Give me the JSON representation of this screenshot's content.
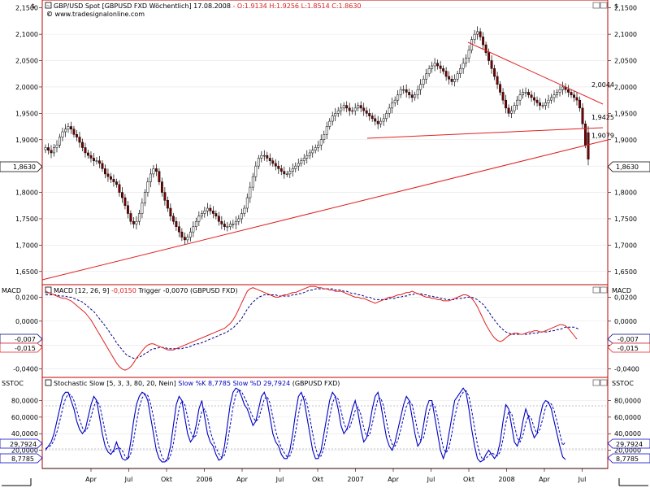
{
  "main_panel": {
    "header": {
      "title": "GBP/USD Spot [GBPUSD FXD  Wöchentlich] 17.08.2008",
      "ohlc": "- O:1.9134 H:1.9256 L:1.8514 C:1.8630",
      "source": "© www.tradesignalonline.com"
    },
    "axis_symbol": "$",
    "price_badge": "1,8630",
    "level_labels": [
      {
        "text": "2,0044",
        "value": 2.0044
      },
      {
        "text": "1,9425",
        "value": 1.9425
      },
      {
        "text": "1,9079",
        "value": 1.9079
      }
    ]
  },
  "macd_panel": {
    "name": "MACD",
    "header": "MACD [12, 26, 9]",
    "value_text": "-0,0150",
    "trigger_text": "Trigger -0,0070",
    "source_text": "(GBPUSD FXD)",
    "badges": [
      "-0,007",
      "-0,015"
    ]
  },
  "stoch_panel": {
    "name": "SSTOC",
    "header": "Stochastic Slow [5, 3, 3, 80, 20, Nein]",
    "k_text": "Slow %K 8,7785",
    "d_text": "Slow %D 29,7924",
    "source_text": "(GBPUSD FXD)",
    "badges": [
      "29,7924",
      "8,7785"
    ]
  },
  "x_labels": [
    "Apr",
    "Jul",
    "Okt",
    "2006",
    "Apr",
    "Jul",
    "Okt",
    "2007",
    "Apr",
    "Jul",
    "Okt",
    "2008",
    "Apr",
    "Jul"
  ],
  "colors": {
    "up_candle": "#ffffff",
    "down_candle": "#800000",
    "trend_line": "#e02020",
    "macd_line": "#e02020",
    "trigger_line": "#000080",
    "stoch_k": "#0000c0",
    "stoch_d": "#0000c0"
  },
  "chart_data": [
    {
      "type": "candlestick",
      "title": "GBP/USD Spot [GBPUSD FXD  Wöchentlich] 17.08.2008",
      "ylim": [
        1.625,
        2.165
      ],
      "y_ticks": [
        "2,1500",
        "2,1000",
        "2,0500",
        "2,0000",
        "1,9500",
        "1,9000",
        "1,8500",
        "1,8000",
        "1,7500",
        "1,7000",
        "1,6500"
      ],
      "last_bar": {
        "open": 1.9134,
        "high": 1.9256,
        "low": 1.8514,
        "close": 1.863
      },
      "closes": [
        1.885,
        1.88,
        1.875,
        1.885,
        1.89,
        1.905,
        1.915,
        1.92,
        1.925,
        1.92,
        1.91,
        1.905,
        1.895,
        1.885,
        1.875,
        1.87,
        1.865,
        1.86,
        1.86,
        1.855,
        1.845,
        1.835,
        1.83,
        1.825,
        1.82,
        1.815,
        1.8,
        1.79,
        1.775,
        1.76,
        1.745,
        1.74,
        1.745,
        1.76,
        1.78,
        1.8,
        1.82,
        1.835,
        1.845,
        1.84,
        1.82,
        1.8,
        1.785,
        1.77,
        1.755,
        1.745,
        1.735,
        1.725,
        1.715,
        1.71,
        1.715,
        1.725,
        1.735,
        1.745,
        1.755,
        1.76,
        1.765,
        1.77,
        1.765,
        1.76,
        1.755,
        1.745,
        1.74,
        1.735,
        1.735,
        1.74,
        1.74,
        1.745,
        1.75,
        1.76,
        1.77,
        1.79,
        1.81,
        1.83,
        1.85,
        1.865,
        1.87,
        1.87,
        1.865,
        1.86,
        1.855,
        1.85,
        1.845,
        1.84,
        1.835,
        1.835,
        1.84,
        1.845,
        1.85,
        1.855,
        1.86,
        1.865,
        1.87,
        1.875,
        1.88,
        1.885,
        1.89,
        1.9,
        1.91,
        1.925,
        1.935,
        1.945,
        1.95,
        1.955,
        1.96,
        1.965,
        1.96,
        1.955,
        1.955,
        1.96,
        1.965,
        1.96,
        1.955,
        1.95,
        1.945,
        1.94,
        1.935,
        1.93,
        1.935,
        1.94,
        1.95,
        1.96,
        1.97,
        1.975,
        1.985,
        1.995,
        1.995,
        1.99,
        1.985,
        1.98,
        1.985,
        1.995,
        2.005,
        2.015,
        2.025,
        2.035,
        2.04,
        2.045,
        2.04,
        2.035,
        2.03,
        2.02,
        2.015,
        2.01,
        2.015,
        2.025,
        2.035,
        2.045,
        2.055,
        2.07,
        2.09,
        2.1,
        2.105,
        2.095,
        2.08,
        2.065,
        2.05,
        2.035,
        2.02,
        2.005,
        1.99,
        1.975,
        1.96,
        1.95,
        1.955,
        1.965,
        1.975,
        1.985,
        1.99,
        1.99,
        1.985,
        1.98,
        1.975,
        1.97,
        1.965,
        1.965,
        1.97,
        1.975,
        1.98,
        1.985,
        1.99,
        1.995,
        2.0,
        1.995,
        1.99,
        1.985,
        1.98,
        1.975,
        1.96,
        1.93,
        1.89,
        1.863
      ]
    },
    {
      "type": "line",
      "name": "MACD",
      "ylim": [
        -0.047,
        0.0305
      ],
      "y_ticks": [
        "0,0200",
        "0,0000",
        "-0,0200",
        "-0,0400"
      ],
      "series": [
        {
          "name": "MACD [12, 26, 9]",
          "values": [
            0.025,
            0.024,
            0.023,
            0.022,
            0.021,
            0.02,
            0.019,
            0.019,
            0.018,
            0.017,
            0.015,
            0.013,
            0.011,
            0.009,
            0.007,
            0.004,
            0.001,
            -0.003,
            -0.007,
            -0.011,
            -0.015,
            -0.019,
            -0.023,
            -0.027,
            -0.031,
            -0.035,
            -0.038,
            -0.04,
            -0.041,
            -0.04,
            -0.038,
            -0.035,
            -0.031,
            -0.028,
            -0.025,
            -0.022,
            -0.02,
            -0.019,
            -0.019,
            -0.02,
            -0.021,
            -0.022,
            -0.023,
            -0.024,
            -0.024,
            -0.024,
            -0.023,
            -0.022,
            -0.021,
            -0.02,
            -0.019,
            -0.018,
            -0.017,
            -0.016,
            -0.015,
            -0.014,
            -0.013,
            -0.012,
            -0.011,
            -0.01,
            -0.009,
            -0.008,
            -0.007,
            -0.006,
            -0.004,
            -0.002,
            0.001,
            0.005,
            0.01,
            0.015,
            0.02,
            0.025,
            0.027,
            0.028,
            0.027,
            0.026,
            0.025,
            0.024,
            0.023,
            0.022,
            0.021,
            0.02,
            0.02,
            0.021,
            0.022,
            0.022,
            0.023,
            0.024,
            0.024,
            0.025,
            0.026,
            0.027,
            0.028,
            0.029,
            0.029,
            0.029,
            0.028,
            0.028,
            0.027,
            0.027,
            0.026,
            0.026,
            0.025,
            0.025,
            0.025,
            0.024,
            0.023,
            0.022,
            0.021,
            0.02,
            0.02,
            0.019,
            0.019,
            0.018,
            0.017,
            0.016,
            0.015,
            0.016,
            0.017,
            0.018,
            0.019,
            0.02,
            0.02,
            0.021,
            0.022,
            0.022,
            0.023,
            0.024,
            0.024,
            0.025,
            0.024,
            0.023,
            0.022,
            0.021,
            0.02,
            0.02,
            0.019,
            0.019,
            0.018,
            0.018,
            0.017,
            0.017,
            0.017,
            0.018,
            0.019,
            0.02,
            0.021,
            0.022,
            0.022,
            0.021,
            0.019,
            0.016,
            0.012,
            0.007,
            0.002,
            -0.003,
            -0.007,
            -0.011,
            -0.014,
            -0.016,
            -0.017,
            -0.016,
            -0.014,
            -0.012,
            -0.011,
            -0.01,
            -0.01,
            -0.011,
            -0.011,
            -0.01,
            -0.009,
            -0.009,
            -0.008,
            -0.008,
            -0.009,
            -0.009,
            -0.008,
            -0.007,
            -0.006,
            -0.005,
            -0.004,
            -0.003,
            -0.003,
            -0.004,
            -0.006,
            -0.009,
            -0.012,
            -0.015
          ]
        },
        {
          "name": "Trigger",
          "values": [
            0.022,
            0.022,
            0.022,
            0.022,
            0.022,
            0.021,
            0.021,
            0.021,
            0.02,
            0.02,
            0.019,
            0.018,
            0.017,
            0.016,
            0.014,
            0.012,
            0.01,
            0.008,
            0.005,
            0.002,
            -0.001,
            -0.004,
            -0.007,
            -0.011,
            -0.014,
            -0.018,
            -0.021,
            -0.024,
            -0.027,
            -0.029,
            -0.03,
            -0.031,
            -0.031,
            -0.03,
            -0.029,
            -0.027,
            -0.026,
            -0.024,
            -0.023,
            -0.023,
            -0.022,
            -0.022,
            -0.022,
            -0.023,
            -0.023,
            -0.023,
            -0.023,
            -0.023,
            -0.023,
            -0.022,
            -0.022,
            -0.021,
            -0.02,
            -0.019,
            -0.019,
            -0.018,
            -0.017,
            -0.016,
            -0.015,
            -0.014,
            -0.013,
            -0.012,
            -0.011,
            -0.01,
            -0.009,
            -0.007,
            -0.006,
            -0.003,
            -0.001,
            0.002,
            0.006,
            0.01,
            0.013,
            0.016,
            0.018,
            0.02,
            0.021,
            0.022,
            0.022,
            0.022,
            0.022,
            0.022,
            0.021,
            0.021,
            0.021,
            0.021,
            0.021,
            0.022,
            0.022,
            0.023,
            0.023,
            0.024,
            0.025,
            0.026,
            0.026,
            0.027,
            0.027,
            0.027,
            0.027,
            0.027,
            0.027,
            0.027,
            0.026,
            0.026,
            0.026,
            0.025,
            0.025,
            0.024,
            0.023,
            0.023,
            0.022,
            0.022,
            0.021,
            0.02,
            0.02,
            0.019,
            0.018,
            0.018,
            0.018,
            0.018,
            0.018,
            0.019,
            0.019,
            0.019,
            0.02,
            0.02,
            0.021,
            0.021,
            0.022,
            0.022,
            0.023,
            0.023,
            0.023,
            0.022,
            0.022,
            0.021,
            0.021,
            0.02,
            0.02,
            0.019,
            0.019,
            0.018,
            0.018,
            0.018,
            0.018,
            0.019,
            0.019,
            0.019,
            0.02,
            0.02,
            0.02,
            0.019,
            0.018,
            0.016,
            0.014,
            0.011,
            0.008,
            0.004,
            0.001,
            -0.002,
            -0.005,
            -0.007,
            -0.009,
            -0.01,
            -0.011,
            -0.011,
            -0.011,
            -0.011,
            -0.011,
            -0.011,
            -0.011,
            -0.01,
            -0.01,
            -0.01,
            -0.009,
            -0.009,
            -0.009,
            -0.009,
            -0.008,
            -0.008,
            -0.007,
            -0.007,
            -0.006,
            -0.005,
            -0.005,
            -0.005,
            -0.005,
            -0.006,
            -0.007
          ]
        }
      ]
    },
    {
      "type": "line",
      "name": "SSTOC",
      "ylim": [
        -2,
        108
      ],
      "y_ticks": [
        "80,0000",
        "60,0000",
        "40,0000",
        "20,0000"
      ],
      "reference_lines": [
        80,
        20
      ],
      "series": [
        {
          "name": "Slow %K",
          "values": [
            20,
            25,
            30,
            40,
            55,
            70,
            85,
            90,
            90,
            80,
            70,
            55,
            45,
            40,
            45,
            60,
            75,
            85,
            80,
            60,
            40,
            25,
            18,
            15,
            20,
            30,
            20,
            10,
            8,
            10,
            30,
            55,
            75,
            85,
            90,
            88,
            80,
            60,
            40,
            20,
            10,
            6,
            6,
            10,
            25,
            50,
            75,
            85,
            80,
            60,
            40,
            30,
            35,
            50,
            70,
            80,
            60,
            40,
            30,
            25,
            15,
            8,
            10,
            25,
            50,
            75,
            90,
            95,
            93,
            85,
            75,
            70,
            60,
            50,
            55,
            70,
            85,
            90,
            80,
            60,
            40,
            30,
            25,
            15,
            10,
            10,
            20,
            40,
            65,
            85,
            90,
            80,
            60,
            40,
            20,
            10,
            10,
            20,
            40,
            60,
            80,
            90,
            85,
            70,
            50,
            40,
            45,
            55,
            70,
            80,
            65,
            45,
            30,
            35,
            50,
            70,
            85,
            90,
            75,
            55,
            35,
            25,
            20,
            30,
            45,
            60,
            75,
            85,
            80,
            60,
            40,
            25,
            30,
            50,
            70,
            80,
            80,
            60,
            40,
            20,
            10,
            20,
            40,
            60,
            80,
            85,
            90,
            95,
            90,
            70,
            45,
            25,
            10,
            6,
            8,
            15,
            20,
            15,
            10,
            15,
            30,
            55,
            75,
            70,
            50,
            30,
            25,
            35,
            55,
            70,
            60,
            45,
            35,
            40,
            60,
            75,
            80,
            78,
            70,
            55,
            40,
            25,
            12,
            8.7785
          ]
        },
        {
          "name": "Slow %D",
          "values": [
            22,
            24,
            26,
            32,
            42,
            55,
            70,
            82,
            88,
            87,
            80,
            68,
            57,
            47,
            43,
            48,
            60,
            73,
            80,
            75,
            60,
            42,
            28,
            19,
            18,
            22,
            23,
            20,
            13,
            9,
            16,
            32,
            53,
            72,
            83,
            88,
            86,
            76,
            60,
            40,
            23,
            12,
            7,
            7,
            14,
            28,
            50,
            70,
            80,
            75,
            60,
            43,
            35,
            38,
            52,
            67,
            70,
            60,
            43,
            32,
            23,
            16,
            11,
            14,
            28,
            50,
            72,
            87,
            93,
            91,
            84,
            77,
            68,
            60,
            55,
            58,
            70,
            82,
            85,
            77,
            60,
            43,
            32,
            23,
            17,
            12,
            13,
            23,
            42,
            63,
            80,
            85,
            77,
            60,
            40,
            23,
            13,
            13,
            23,
            40,
            60,
            77,
            85,
            82,
            68,
            53,
            45,
            47,
            57,
            68,
            72,
            63,
            47,
            37,
            38,
            52,
            68,
            82,
            83,
            73,
            55,
            38,
            27,
            25,
            32,
            45,
            60,
            73,
            80,
            75,
            60,
            42,
            32,
            35,
            50,
            67,
            77,
            73,
            60,
            40,
            23,
            17,
            23,
            40,
            60,
            75,
            85,
            90,
            92,
            85,
            68,
            47,
            27,
            14,
            8,
            10,
            14,
            17,
            15,
            13,
            18,
            33,
            53,
            67,
            65,
            50,
            35,
            30,
            38,
            53,
            62,
            58,
            47,
            40,
            45,
            58,
            72,
            78,
            76,
            68,
            55,
            40,
            26,
            29.7924
          ]
        }
      ]
    }
  ]
}
